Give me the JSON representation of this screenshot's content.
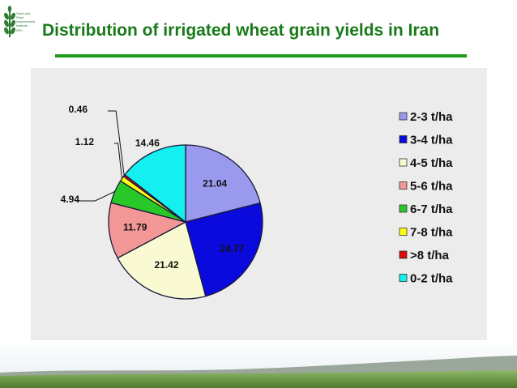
{
  "title": "Distribution of irrigated wheat grain yields in Iran",
  "logo": {
    "lines": [
      "Seed and",
      "Plant",
      "Improvement",
      "Institute",
      "SPII"
    ]
  },
  "colors": {
    "title": "#1a7a1a",
    "rule": "#1e9a1e",
    "panel": "#ececec"
  },
  "chart_data": {
    "type": "pie",
    "title": "",
    "slices": [
      {
        "label": "2-3 t/ha",
        "value": 21.04,
        "color": "#9999ee"
      },
      {
        "label": "3-4 t/ha",
        "value": 24.77,
        "color": "#0a0adc"
      },
      {
        "label": "4-5 t/ha",
        "value": 21.42,
        "color": "#fafad2"
      },
      {
        "label": "5-6 t/ha",
        "value": 11.79,
        "color": "#f29696"
      },
      {
        "label": "6-7 t/ha",
        "value": 4.94,
        "color": "#28c828"
      },
      {
        "label": "7-8 t/ha",
        "value": 1.12,
        "color": "#ffff14"
      },
      {
        "label": ">8 t/ha",
        "value": 0.46,
        "color": "#dc0a0a"
      },
      {
        "label": "0-2 t/ha",
        "value": 14.46,
        "color": "#14f0f0"
      }
    ],
    "value_labels": [
      "21.04",
      "24.77",
      "21.42",
      "11.79",
      "4.94",
      "1.12",
      "0.46",
      "14.46"
    ],
    "legend_position": "right"
  }
}
